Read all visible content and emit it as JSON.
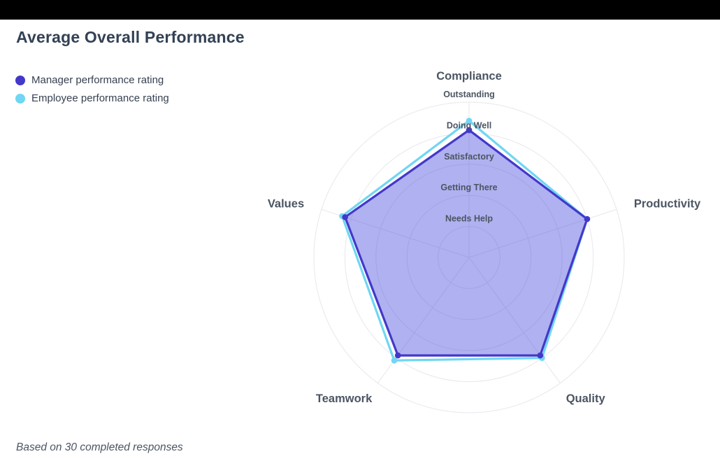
{
  "window": {
    "top_bar_color": "#000000"
  },
  "header": {
    "title": "Average Overall Performance"
  },
  "legend": [
    {
      "label": "Manager performance rating",
      "color": "#4338ca"
    },
    {
      "label": "Employee performance rating",
      "color": "#70d6f3"
    }
  ],
  "chart_data": {
    "type": "radar",
    "title": "Average Overall Performance",
    "categories": [
      "Compliance",
      "Productivity",
      "Quality",
      "Teamwork",
      "Values"
    ],
    "tick_labels": [
      "Needs Help",
      "Getting There",
      "Satisfactory",
      "Doing Well",
      "Outstanding"
    ],
    "scale": {
      "min": 0,
      "max": 5
    },
    "grid": "circular",
    "legend_position": "top-left",
    "series": [
      {
        "name": "Manager performance rating",
        "color": "#4338ca",
        "fill": "rgba(79, 82, 221, 0.45)",
        "values": [
          4.1,
          4.0,
          3.9,
          3.9,
          4.2
        ]
      },
      {
        "name": "Employee performance rating",
        "color": "#70d6f3",
        "fill": "none",
        "values": [
          4.4,
          4.0,
          4.0,
          4.1,
          4.3
        ]
      }
    ]
  },
  "footer": {
    "note": "Based on 30 completed responses"
  }
}
